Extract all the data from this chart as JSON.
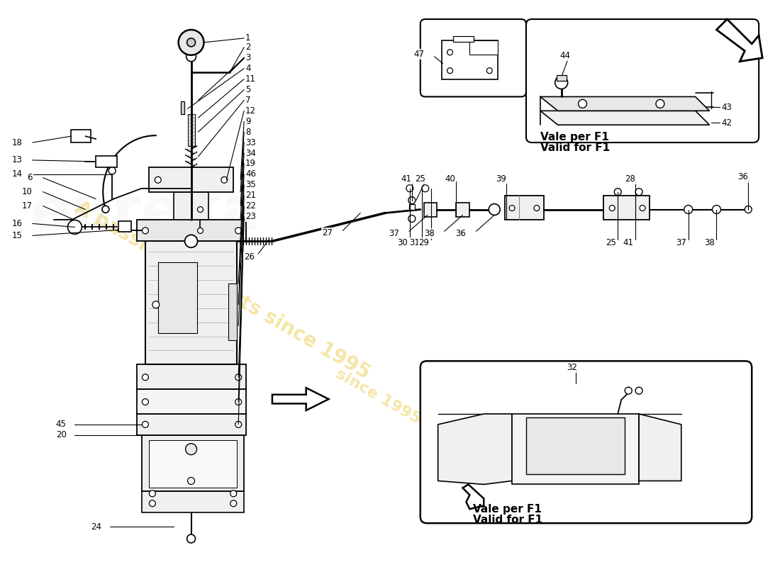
{
  "bg": "#ffffff",
  "wm_color": "#e8c840",
  "wm_alpha": 0.45,
  "lc": "#000000",
  "fs": 8.5,
  "vale_lines": [
    "Vale per F1",
    "Valid for F1"
  ]
}
